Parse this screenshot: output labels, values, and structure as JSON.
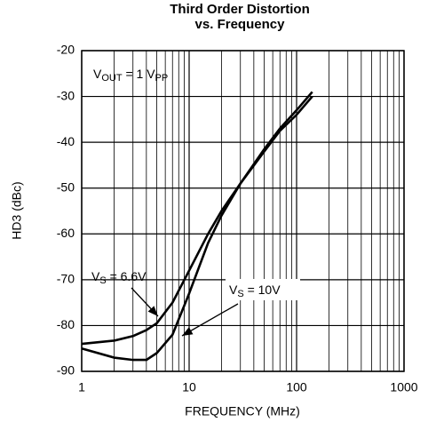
{
  "chart_data": {
    "type": "line",
    "title": [
      "Third Order Distortion",
      "vs. Frequency"
    ],
    "xlabel": "FREQUENCY (MHz)",
    "ylabel": "HD3 (dBc)",
    "xscale": "log",
    "grid": true,
    "xlim": [
      1,
      1000
    ],
    "xticks": [
      1,
      10,
      100,
      1000
    ],
    "ylim": [
      -90,
      -20
    ],
    "yticks": [
      -90,
      -80,
      -70,
      -60,
      -50,
      -40,
      -30,
      -20
    ],
    "series": [
      {
        "color": "#000000",
        "x": [
          1,
          2,
          3,
          4,
          5,
          7,
          10,
          15,
          20,
          30,
          50,
          70,
          100,
          140
        ],
        "values": [
          -84,
          -83.3,
          -82.3,
          -81,
          -79.5,
          -75,
          -68,
          -60,
          -55,
          -49,
          -41.5,
          -37,
          -33,
          -29
        ]
      },
      {
        "color": "#000000",
        "x": [
          1,
          2,
          3,
          4,
          5,
          7,
          10,
          15,
          20,
          30,
          50,
          70,
          100,
          140
        ],
        "values": [
          -85,
          -87,
          -87.5,
          -87.5,
          -86,
          -82,
          -73,
          -62,
          -56,
          -49,
          -42,
          -37.5,
          -34,
          -30
        ]
      }
    ],
    "annotations": [
      {
        "parts": [
          "V",
          "OUT",
          " = 1 V",
          "PP"
        ]
      },
      {
        "parts": [
          "V",
          "S",
          " = 6.6V"
        ]
      },
      {
        "parts": [
          "V",
          "S",
          " = 10V"
        ]
      }
    ]
  }
}
